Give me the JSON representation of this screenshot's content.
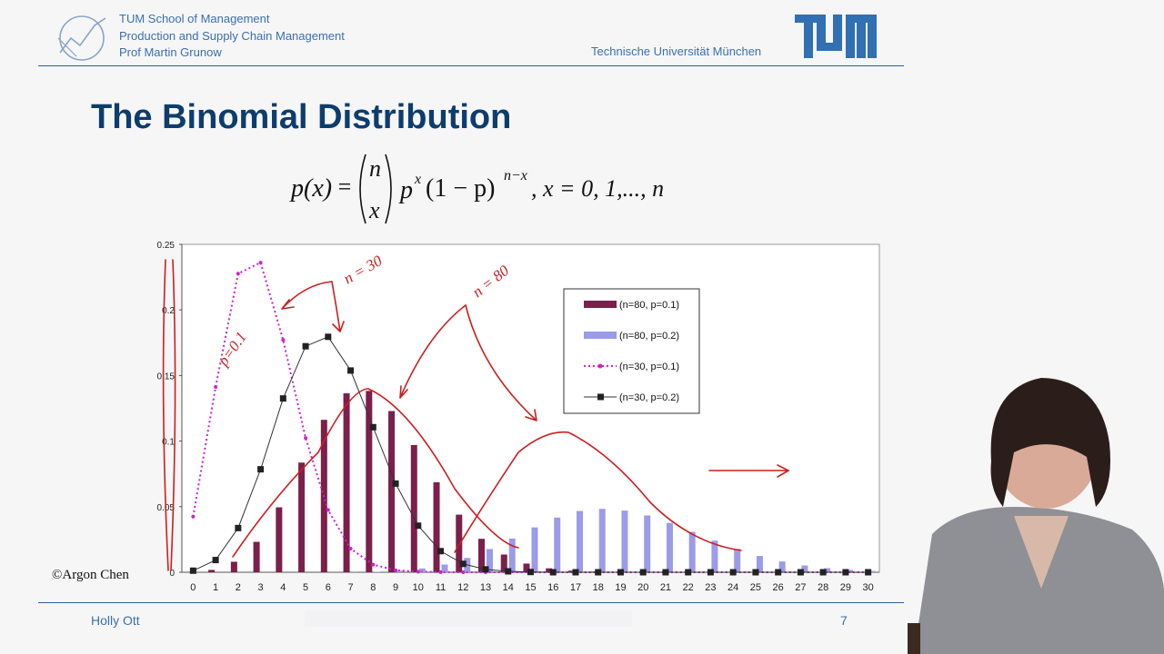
{
  "header": {
    "school": "TUM School of Management",
    "chair": "Production and Supply Chain Management",
    "professor": "Prof Martin Grunow",
    "university": "Technische Universität München"
  },
  "slide": {
    "title": "The Binomial Distribution",
    "formula": {
      "lhs": "p(x)",
      "equals": "=",
      "binom_top": "n",
      "binom_bottom": "x",
      "p_base": "p",
      "p_exp": "x",
      "one_minus_p": "(1 − p)",
      "q_exp": "n−x",
      "range": ", x = 0, 1,..., n"
    },
    "copyright": "©Argon Chen"
  },
  "footer": {
    "presenter": "Holly Ott",
    "page": "7"
  },
  "annotations": {
    "n30": "n = 30",
    "n80": "n = 80",
    "p01": "p=0.1"
  },
  "chart_data": {
    "type": "bar",
    "x": [
      0,
      1,
      2,
      3,
      4,
      5,
      6,
      7,
      8,
      9,
      10,
      11,
      12,
      13,
      14,
      15,
      16,
      17,
      18,
      19,
      20,
      21,
      22,
      23,
      24,
      25,
      26,
      27,
      28,
      29,
      30
    ],
    "ylim": [
      0,
      0.25
    ],
    "yticks": [
      "0",
      "0.05",
      "0.1",
      "0.15",
      "0.2",
      "0.25"
    ],
    "legend_position": "top-right",
    "series": [
      {
        "name": "(n=80, p=0.1)",
        "kind": "bar",
        "color": "#7b1f4b",
        "values": [
          0.0002,
          0.0018,
          0.008,
          0.0232,
          0.0495,
          0.0836,
          0.1162,
          0.1364,
          0.1383,
          0.1229,
          0.097,
          0.0686,
          0.0439,
          0.0255,
          0.0135,
          0.0066,
          0.003,
          0.0012,
          0.0005,
          0.0002,
          0.0001,
          0,
          0,
          0,
          0,
          0,
          0,
          0,
          0,
          0,
          0
        ]
      },
      {
        "name": "(n=80, p=0.2)",
        "kind": "bar",
        "color": "#9b9be8",
        "values": [
          0,
          0,
          0,
          0,
          0,
          0,
          0,
          0.0001,
          0.0004,
          0.0012,
          0.0029,
          0.0059,
          0.0109,
          0.0177,
          0.0257,
          0.0342,
          0.0417,
          0.0467,
          0.0483,
          0.047,
          0.0433,
          0.0376,
          0.0308,
          0.0241,
          0.0178,
          0.0124,
          0.0082,
          0.0052,
          0.0031,
          0.0018,
          0.001
        ]
      },
      {
        "name": "(n=30, p=0.1)",
        "kind": "line",
        "color": "#cc22cc",
        "values": [
          0.0424,
          0.1413,
          0.2277,
          0.2361,
          0.1771,
          0.1023,
          0.0474,
          0.018,
          0.0058,
          0.0016,
          0.0004,
          0.0001,
          0,
          0,
          0,
          0,
          0,
          0,
          0,
          0,
          0,
          0,
          0,
          0,
          0,
          0,
          0,
          0,
          0,
          0,
          0
        ]
      },
      {
        "name": "(n=30, p=0.2)",
        "kind": "line",
        "color": "#333333",
        "values": [
          0.0012,
          0.0093,
          0.0337,
          0.0785,
          0.1325,
          0.1723,
          0.1795,
          0.1538,
          0.1106,
          0.0676,
          0.0355,
          0.0161,
          0.0064,
          0.0022,
          0.0007,
          0.0002,
          0,
          0,
          0,
          0,
          0,
          0,
          0,
          0,
          0,
          0,
          0,
          0,
          0,
          0,
          0
        ]
      }
    ]
  },
  "colors": {
    "title": "#0d3d6e",
    "header_text": "#3a6fb5",
    "rule": "#2c5c9c",
    "annotation": "#cc1f1f"
  }
}
